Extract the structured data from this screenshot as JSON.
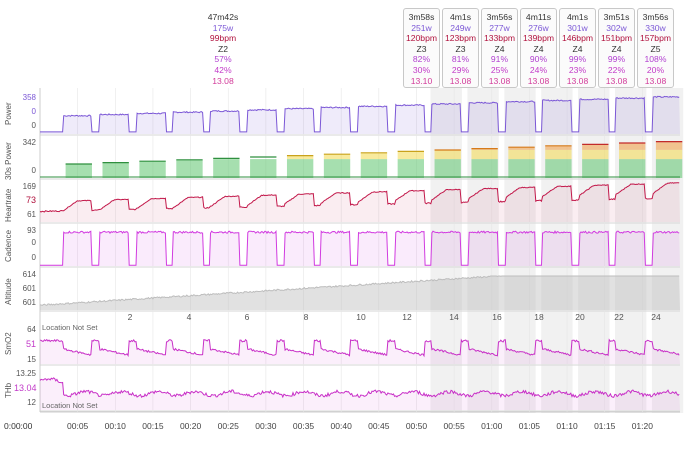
{
  "summary": {
    "duration": "47m42s",
    "power": "175w",
    "heartrate": "99bpm",
    "zone": "Z2",
    "power_pct": "57%",
    "hr_pct": "42%",
    "speed": "13.08"
  },
  "intervals": [
    {
      "duration": "3m58s",
      "power": "251w",
      "heartrate": "120bpm",
      "zone": "Z3",
      "power_pct": "82%",
      "hr_pct": "30%",
      "speed": "13.10"
    },
    {
      "duration": "4m1s",
      "power": "249w",
      "heartrate": "123bpm",
      "zone": "Z3",
      "power_pct": "81%",
      "hr_pct": "29%",
      "speed": "13.08"
    },
    {
      "duration": "3m56s",
      "power": "277w",
      "heartrate": "133bpm",
      "zone": "Z4",
      "power_pct": "91%",
      "hr_pct": "25%",
      "speed": "13.08"
    },
    {
      "duration": "4m11s",
      "power": "276w",
      "heartrate": "139bpm",
      "zone": "Z4",
      "power_pct": "90%",
      "hr_pct": "24%",
      "speed": "13.08"
    },
    {
      "duration": "4m1s",
      "power": "301w",
      "heartrate": "146bpm",
      "zone": "Z4",
      "power_pct": "99%",
      "hr_pct": "23%",
      "speed": "13.08"
    },
    {
      "duration": "3m51s",
      "power": "302w",
      "heartrate": "151bpm",
      "zone": "Z4",
      "power_pct": "99%",
      "hr_pct": "22%",
      "speed": "13.08"
    },
    {
      "duration": "3m56s",
      "power": "330w",
      "heartrate": "157bpm",
      "zone": "Z5",
      "power_pct": "108%",
      "hr_pct": "20%",
      "speed": "13.08"
    }
  ],
  "panels": {
    "power": {
      "label": "Power",
      "ticks": [
        "358",
        "0",
        "0"
      ]
    },
    "power30": {
      "label": "30s Power",
      "ticks": [
        "342",
        "0"
      ]
    },
    "heartrate": {
      "label": "Heartrate",
      "ticks": [
        "169",
        "73",
        "61"
      ]
    },
    "cadence": {
      "label": "Cadence",
      "ticks": [
        "93",
        "0",
        "0"
      ]
    },
    "altitude": {
      "label": "Altitude",
      "ticks": [
        "614",
        "601",
        "601"
      ]
    },
    "smo2": {
      "label": "SmO2",
      "ticks": [
        "64",
        "51",
        "15"
      ],
      "note": "Location Not Set"
    },
    "thb": {
      "label": "THb",
      "ticks": [
        "13.25",
        "13.04",
        "12"
      ],
      "note": "Location Not Set"
    }
  },
  "distance_ticks": [
    "2",
    "4",
    "6",
    "8",
    "10",
    "12",
    "14",
    "16",
    "18",
    "20",
    "22",
    "24"
  ],
  "time_axis": {
    "start": "0:00:00",
    "labels": [
      "00:05",
      "00:10",
      "00:15",
      "00:20",
      "00:25",
      "00:30",
      "00:35",
      "00:40",
      "00:45",
      "00:50",
      "00:55",
      "01:00",
      "01:05",
      "01:10",
      "01:15",
      "01:20"
    ]
  },
  "colors": {
    "power": "#7b57d6",
    "heartrate": "#c2184a",
    "cadence": "#d13be0",
    "altitude": "#bdbdbd",
    "smo2": "#c82fc7",
    "thb": "#c82fc7",
    "interval_shade": "#f1f1f1",
    "grid": "#e6e6e6"
  }
}
